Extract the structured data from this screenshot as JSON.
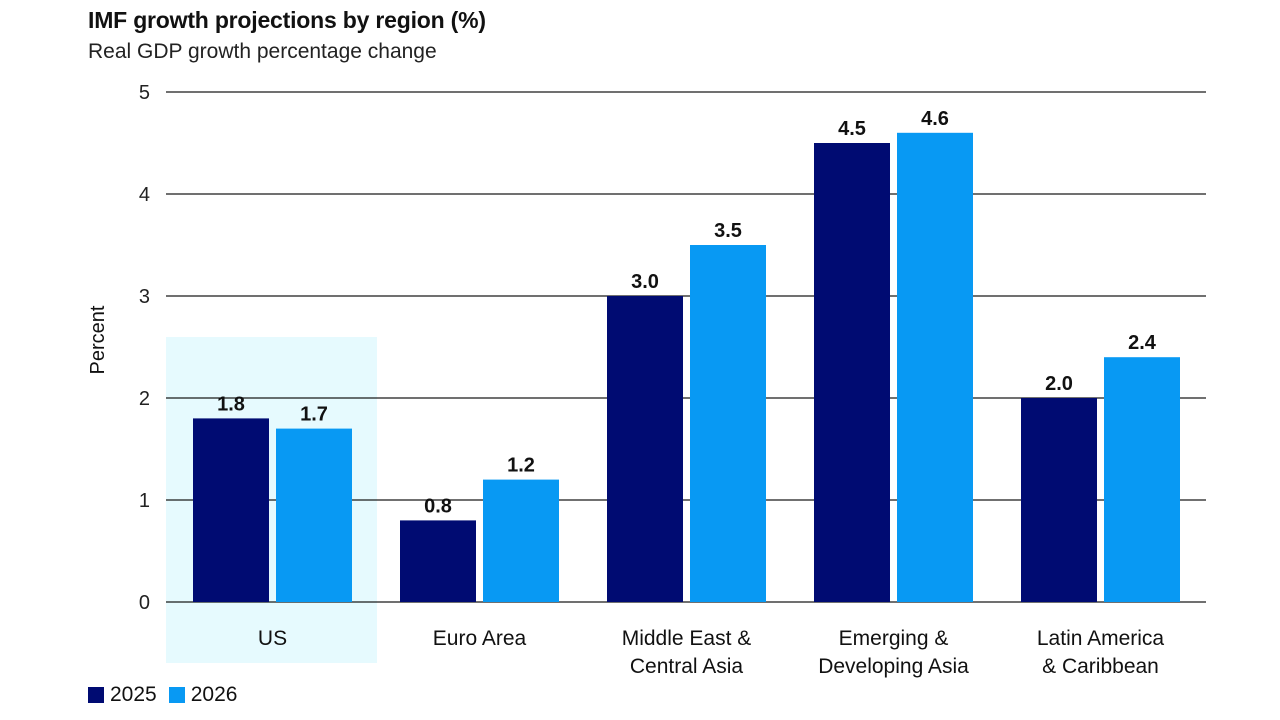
{
  "chart_data": {
    "type": "bar",
    "title": "IMF growth projections by region (%)",
    "subtitle": "Real GDP growth percentage change",
    "ylabel": "Percent",
    "xlabel": "",
    "ylim": [
      0,
      5
    ],
    "yticks": [
      0,
      1,
      2,
      3,
      4,
      5
    ],
    "grid": true,
    "legend_position": "bottom-left",
    "highlight_category": "US",
    "categories": [
      [
        "US"
      ],
      [
        "Euro Area"
      ],
      [
        "Middle East &",
        "Central Asia"
      ],
      [
        "Emerging &",
        "Developing Asia"
      ],
      [
        "Latin America",
        "& Caribbean"
      ]
    ],
    "series": [
      {
        "name": "2025",
        "color": "#000b72",
        "values": [
          1.8,
          0.8,
          3.0,
          4.5,
          2.0
        ],
        "labels": [
          "1.8",
          "0.8",
          "3.0",
          "4.5",
          "2.0"
        ]
      },
      {
        "name": "2026",
        "color": "#0899f3",
        "values": [
          1.7,
          1.2,
          3.5,
          4.6,
          2.4
        ],
        "labels": [
          "1.7",
          "1.2",
          "3.5",
          "4.6",
          "2.4"
        ]
      }
    ],
    "colors": {
      "highlight": "#e6fafe",
      "grid": "#1a1a1a"
    }
  }
}
